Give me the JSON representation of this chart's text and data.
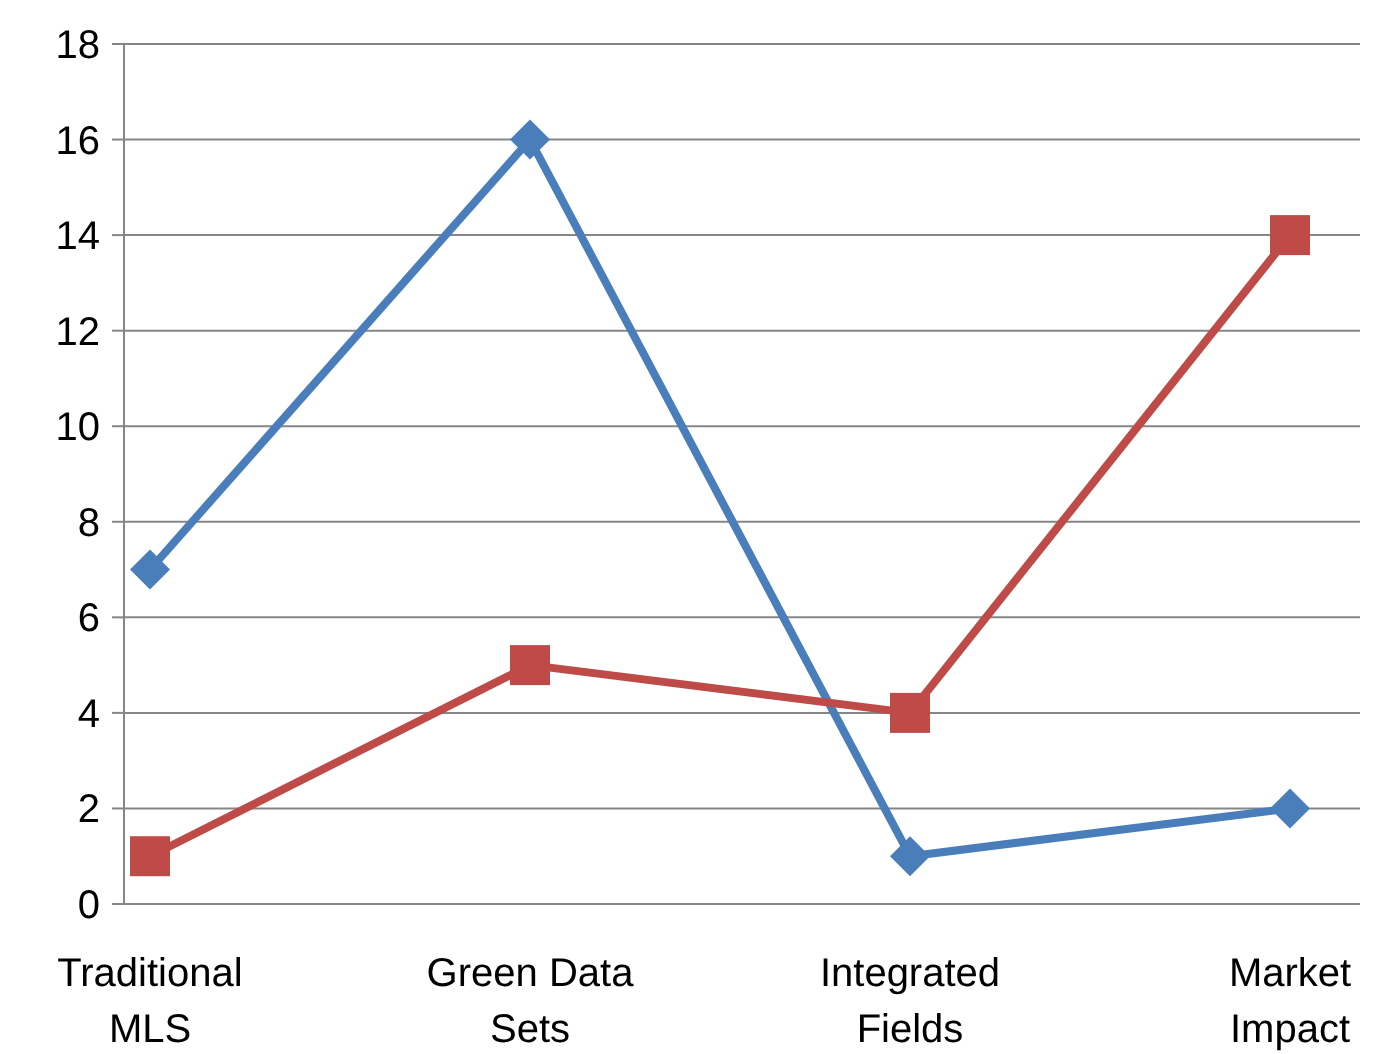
{
  "chart_data": {
    "type": "line",
    "categories": [
      "Traditional MLS",
      "Green Data Sets",
      "Integrated Fields",
      "Market Impact"
    ],
    "series": [
      {
        "color": "#4a7ebb",
        "values": [
          7,
          16,
          1,
          2
        ],
        "marker": "diamond"
      },
      {
        "color": "#be4b48",
        "values": [
          1,
          5,
          4,
          14
        ],
        "marker": "square"
      }
    ],
    "ylim": [
      0,
      18
    ],
    "yticks": [
      0,
      2,
      4,
      6,
      8,
      10,
      12,
      14,
      16,
      18
    ],
    "grid": "y",
    "line_style": "solid"
  }
}
